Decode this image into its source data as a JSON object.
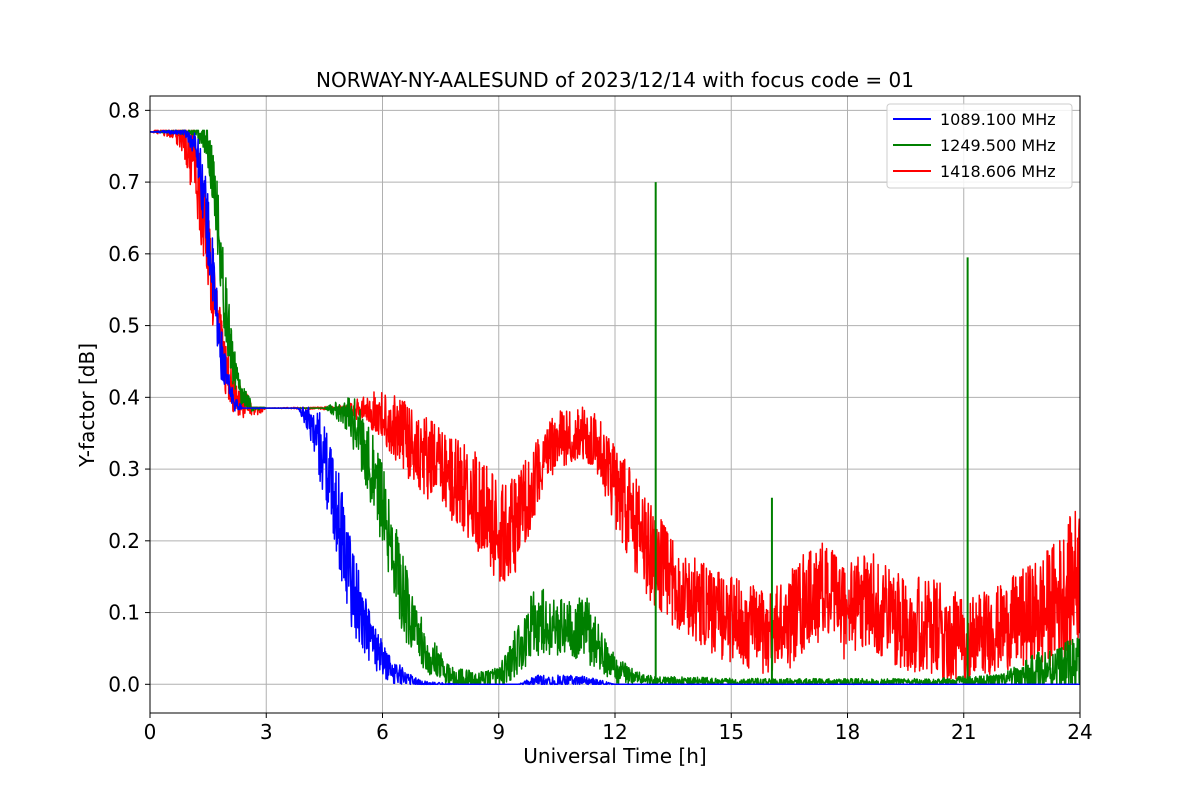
{
  "chart_data": {
    "type": "line",
    "title": "NORWAY-NY-AALESUND of 2023/12/14 with focus code = 01",
    "xlabel": "Universal Time [h]",
    "ylabel": "Y-factor [dB]",
    "xlim": [
      0,
      24
    ],
    "ylim": [
      -0.04,
      0.82
    ],
    "xticks": [
      0,
      3,
      6,
      9,
      12,
      15,
      18,
      21,
      24
    ],
    "xtick_labels": [
      "0",
      "3",
      "6",
      "9",
      "12",
      "15",
      "18",
      "21",
      "24"
    ],
    "yticks": [
      0.0,
      0.1,
      0.2,
      0.3,
      0.4,
      0.5,
      0.6,
      0.7,
      0.8
    ],
    "ytick_labels": [
      "0.0",
      "0.1",
      "0.2",
      "0.3",
      "0.4",
      "0.5",
      "0.6",
      "0.7",
      "0.8"
    ],
    "grid": true,
    "legend_position": "top-right",
    "series": [
      {
        "name": "1089.100 MHz",
        "color": "#0000ff",
        "x": [
          0,
          0.9,
          1.2,
          1.4,
          1.6,
          1.8,
          2.0,
          2.2,
          2.4,
          3.0,
          3.8,
          4.1,
          4.4,
          4.7,
          5.0,
          5.2,
          5.5,
          5.8,
          6.2,
          6.6,
          7.0,
          8.0,
          9.5,
          10.0,
          11.0,
          11.5,
          12.0,
          24
        ],
        "y": [
          0.77,
          0.77,
          0.75,
          0.68,
          0.58,
          0.47,
          0.42,
          0.39,
          0.385,
          0.385,
          0.385,
          0.37,
          0.33,
          0.27,
          0.2,
          0.14,
          0.09,
          0.05,
          0.02,
          0.01,
          0.0,
          0.0,
          0.0,
          0.005,
          0.005,
          0.003,
          0.0,
          0.0
        ],
        "noise": [
          0,
          0.005,
          0.02,
          0.05,
          0.05,
          0.04,
          0.02,
          0.01,
          0.0,
          0.0,
          0.0,
          0.02,
          0.05,
          0.06,
          0.07,
          0.06,
          0.05,
          0.03,
          0.02,
          0.01,
          0.005,
          0.0,
          0.0,
          0.008,
          0.008,
          0.005,
          0.0,
          0.0
        ]
      },
      {
        "name": "1249.500 MHz",
        "color": "#008000",
        "x": [
          0,
          1.2,
          1.5,
          1.7,
          1.9,
          2.1,
          2.3,
          2.6,
          3.0,
          4.5,
          5.0,
          5.3,
          5.6,
          5.9,
          6.2,
          6.5,
          6.8,
          7.2,
          7.8,
          8.5,
          9.0,
          9.3,
          9.6,
          10.0,
          10.4,
          10.8,
          11.2,
          11.6,
          12.0,
          12.5,
          13.0,
          16.0,
          20.0,
          22.0,
          22.5,
          23.0,
          23.5,
          24.0
        ],
        "y": [
          0.77,
          0.77,
          0.75,
          0.67,
          0.55,
          0.46,
          0.41,
          0.39,
          0.385,
          0.385,
          0.38,
          0.36,
          0.32,
          0.27,
          0.2,
          0.13,
          0.08,
          0.04,
          0.01,
          0.005,
          0.01,
          0.03,
          0.06,
          0.09,
          0.08,
          0.08,
          0.08,
          0.05,
          0.02,
          0.01,
          0.005,
          0.003,
          0.003,
          0.005,
          0.01,
          0.02,
          0.025,
          0.03
        ],
        "noise": [
          0,
          0.005,
          0.03,
          0.05,
          0.05,
          0.04,
          0.02,
          0.01,
          0.0,
          0.0,
          0.02,
          0.04,
          0.05,
          0.06,
          0.06,
          0.06,
          0.04,
          0.03,
          0.015,
          0.012,
          0.015,
          0.03,
          0.04,
          0.05,
          0.04,
          0.04,
          0.05,
          0.03,
          0.02,
          0.01,
          0.006,
          0.005,
          0.005,
          0.01,
          0.02,
          0.03,
          0.03,
          0.04
        ],
        "spikes": [
          {
            "x": 13.05,
            "y": 0.7
          },
          {
            "x": 16.05,
            "y": 0.26
          },
          {
            "x": 21.1,
            "y": 0.595
          }
        ]
      },
      {
        "name": "1418.606 MHz",
        "color": "#ff0000",
        "x": [
          0,
          0.6,
          0.9,
          1.1,
          1.3,
          1.5,
          1.7,
          1.9,
          2.1,
          2.4,
          2.8,
          3.0,
          5.0,
          5.8,
          6.5,
          7.0,
          7.5,
          8.0,
          8.5,
          9.0,
          9.5,
          10.0,
          10.5,
          11.0,
          11.5,
          12.0,
          12.5,
          13.0,
          13.5,
          14.0,
          14.5,
          15.0,
          15.5,
          16.0,
          16.5,
          17.0,
          17.5,
          18.0,
          18.5,
          19.0,
          19.5,
          20.0,
          20.5,
          21.0,
          21.5,
          22.0,
          22.5,
          23.0,
          23.5,
          24.0
        ],
        "y": [
          0.77,
          0.77,
          0.76,
          0.73,
          0.68,
          0.6,
          0.52,
          0.45,
          0.41,
          0.39,
          0.385,
          0.385,
          0.385,
          0.38,
          0.35,
          0.32,
          0.3,
          0.28,
          0.25,
          0.21,
          0.22,
          0.3,
          0.34,
          0.35,
          0.34,
          0.28,
          0.22,
          0.18,
          0.14,
          0.12,
          0.1,
          0.09,
          0.08,
          0.07,
          0.09,
          0.12,
          0.13,
          0.1,
          0.12,
          0.1,
          0.09,
          0.08,
          0.07,
          0.06,
          0.07,
          0.08,
          0.09,
          0.1,
          0.12,
          0.16
        ],
        "noise": [
          0,
          0.01,
          0.03,
          0.05,
          0.06,
          0.06,
          0.05,
          0.04,
          0.03,
          0.02,
          0.01,
          0.0,
          0.003,
          0.03,
          0.05,
          0.06,
          0.06,
          0.06,
          0.07,
          0.07,
          0.07,
          0.05,
          0.04,
          0.04,
          0.04,
          0.06,
          0.07,
          0.07,
          0.06,
          0.06,
          0.06,
          0.06,
          0.06,
          0.06,
          0.07,
          0.07,
          0.07,
          0.07,
          0.07,
          0.07,
          0.07,
          0.07,
          0.07,
          0.06,
          0.06,
          0.06,
          0.07,
          0.08,
          0.09,
          0.1
        ],
        "spikes": []
      }
    ]
  }
}
